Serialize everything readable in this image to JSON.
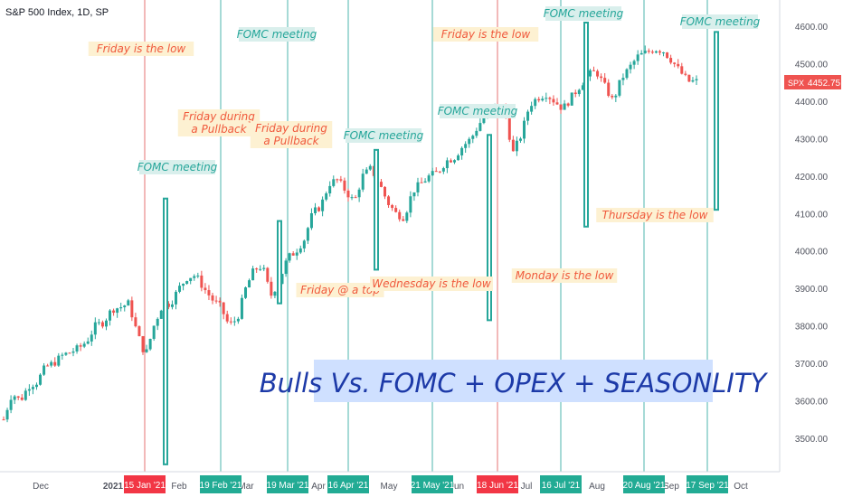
{
  "header": {
    "title": "S&P 500 Index, 1D, SP"
  },
  "colors": {
    "up": "#26a69a",
    "down": "#ef5350",
    "red_line": "#e57373",
    "teal_line": "#4db6ac",
    "fomc_bg": "#d9efec",
    "fomc_text": "#26a69a",
    "low_bg": "#fdf1d2",
    "low_text": "#f0593c",
    "banner_bg": "#cfe0ff",
    "banner_text": "#1d3aa8",
    "price_badge": "#ef5350"
  },
  "price_badge": {
    "symbol": "SPX",
    "price": "4452.75"
  },
  "banner": "Bulls Vs. FOMC + OPEX + SEASONLITY",
  "annotations": [
    {
      "text": "Friday is the low",
      "kind": "low"
    },
    {
      "text": "FOMC meeting",
      "kind": "fomc"
    },
    {
      "text": "Friday during a Pullback",
      "kind": "low"
    },
    {
      "text": "Friday during a Pullback",
      "kind": "low"
    },
    {
      "text": "FOMC meeting",
      "kind": "fomc"
    },
    {
      "text": "Friday @ a top",
      "kind": "low"
    },
    {
      "text": "Wednesday is the low",
      "kind": "low"
    },
    {
      "text": "Friday is the low",
      "kind": "low"
    },
    {
      "text": "FOMC meeting",
      "kind": "fomc"
    },
    {
      "text": "Monday is the low",
      "kind": "low"
    },
    {
      "text": "FOMC meeting",
      "kind": "fomc"
    },
    {
      "text": "Thursday is the low",
      "kind": "low"
    },
    {
      "text": "FOMC meeting",
      "kind": "fomc"
    },
    {
      "text": "FOMC meeting",
      "kind": "fomc"
    }
  ],
  "chart_data": {
    "type": "candlestick",
    "title": "S&P 500 Index, 1D, SP",
    "ylim": [
      3420,
      4680
    ],
    "y_ticks": [
      3500,
      3600,
      3700,
      3800,
      3900,
      4000,
      4100,
      4200,
      4300,
      4400,
      4500,
      4600
    ],
    "x_month_labels": [
      "Dec",
      "2021",
      "Feb",
      "Mar",
      "Apr",
      "May",
      "Jun",
      "Jul",
      "Aug",
      "Sep",
      "Oct"
    ],
    "event_dates": [
      {
        "label": "15 Jan '21",
        "color": "red"
      },
      {
        "label": "19 Feb '21",
        "color": "teal"
      },
      {
        "label": "19 Mar '21",
        "color": "teal"
      },
      {
        "label": "16 Apr '21",
        "color": "teal"
      },
      {
        "label": "21 May '21",
        "color": "teal"
      },
      {
        "label": "18 Jun '21",
        "color": "red"
      },
      {
        "label": "16 Jul '21",
        "color": "teal"
      },
      {
        "label": "20 Aug '21",
        "color": "teal"
      },
      {
        "label": "17 Sep '21",
        "color": "teal"
      }
    ],
    "fomc_ranges": [
      {
        "from": 4140,
        "to": 3430
      },
      {
        "from": 4080,
        "to": 3860
      },
      {
        "from": 4270,
        "to": 3950
      },
      {
        "from": 4310,
        "to": 3815
      },
      {
        "from": 4610,
        "to": 4065
      },
      {
        "from": 4585,
        "to": 4110
      }
    ],
    "price_path": [
      [
        3550,
        3620
      ],
      [
        3600,
        3640
      ],
      [
        3650,
        3690
      ],
      [
        3700,
        3720
      ],
      [
        3730,
        3740
      ],
      [
        3760,
        3800
      ],
      [
        3810,
        3845
      ],
      [
        3850,
        3860
      ],
      [
        3780,
        3720
      ],
      [
        3800,
        3855
      ],
      [
        3860,
        3900
      ],
      [
        3930,
        3935
      ],
      [
        3900,
        3870
      ],
      [
        3850,
        3800
      ],
      [
        3820,
        3900
      ],
      [
        3950,
        3960
      ],
      [
        3880,
        3920
      ],
      [
        3980,
        4000
      ],
      [
        4030,
        4100
      ],
      [
        4120,
        4180
      ],
      [
        4190,
        4160
      ],
      [
        4130,
        4200
      ],
      [
        4220,
        4180
      ],
      [
        4130,
        4100
      ],
      [
        4090,
        4160
      ],
      [
        4180,
        4200
      ],
      [
        4210,
        4240
      ],
      [
        4250,
        4280
      ],
      [
        4300,
        4340
      ],
      [
        4370,
        4390
      ],
      [
        4380,
        4260
      ],
      [
        4310,
        4390
      ],
      [
        4410,
        4420
      ],
      [
        4400,
        4380
      ],
      [
        4410,
        4440
      ],
      [
        4470,
        4480
      ],
      [
        4440,
        4400
      ],
      [
        4460,
        4490
      ],
      [
        4520,
        4530
      ],
      [
        4540,
        4535
      ],
      [
        4510,
        4480
      ],
      [
        4452.75,
        4452.75
      ]
    ]
  }
}
